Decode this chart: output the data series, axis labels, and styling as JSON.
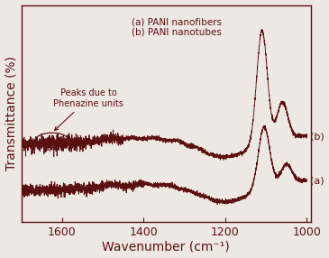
{
  "xlabel": "Wavenumber (cm⁻¹)",
  "ylabel": "Transmittance (%)",
  "background_color": "#ede8e2",
  "line_color": "#5a1010",
  "legend_a": "(a) PANI nanofibers",
  "legend_b": "(b) PANI nanotubes",
  "annotation": "Peaks due to\nPhenazine units",
  "tick_fontsize": 9,
  "axis_label_fontsize": 10,
  "seed": 7
}
